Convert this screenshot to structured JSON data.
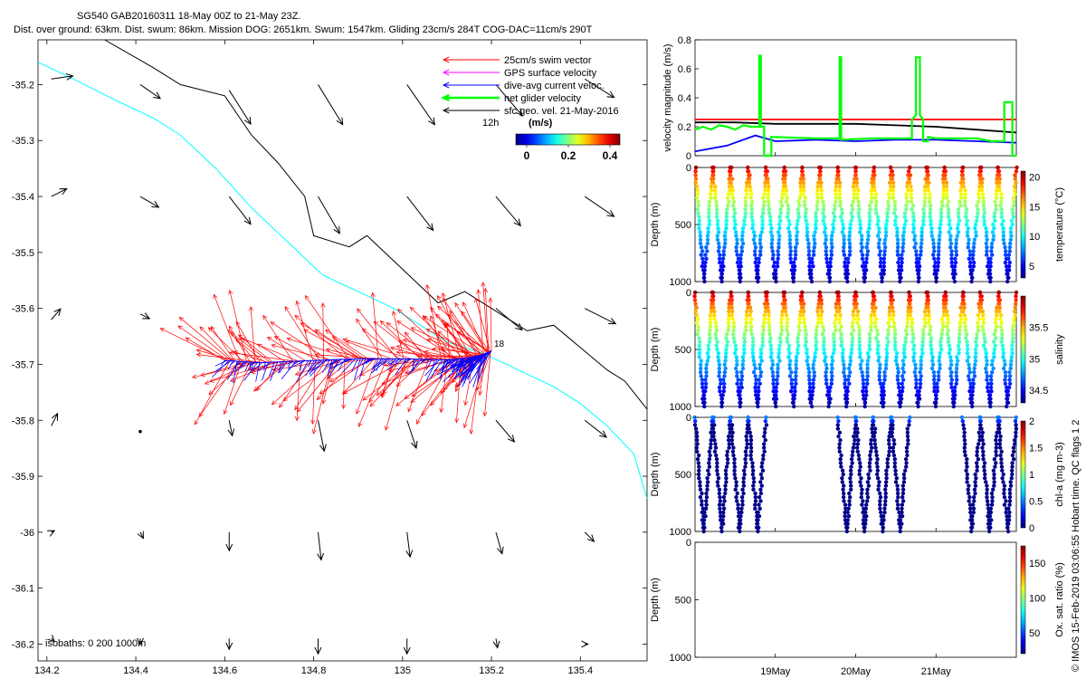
{
  "title": {
    "line1": "SG540 GAB20160311 18-May 00Z to 21-May 23Z.",
    "line2": "Dist. over ground: 63km. Dist. swum: 86km. Mission DOG: 2651km. Swum: 1547km. Gliding 23cm/s 284T COG-DAC=11cm/s 290T"
  },
  "side_caption": "© IMOS 15-Feb-2019 03:06:55 Hobart time. QC flags 1  2",
  "colors": {
    "swim": "#ff0000",
    "gps": "#ff00ff",
    "dac": "#0000ff",
    "net": "#00ff00",
    "sfc": "#000000",
    "isobath_0": "#000000",
    "isobath_200": "#00ffff",
    "isobath_1000": "#000000"
  },
  "chart_data": [
    {
      "type": "map",
      "id": "track_map",
      "xlim": [
        134.18,
        135.55
      ],
      "ylim": [
        -36.23,
        -35.12
      ],
      "x_ticks": [
        "134.2",
        "134.4",
        "134.6",
        "134.8",
        "135",
        "135.2",
        "135.4"
      ],
      "y_ticks": [
        "-35.2",
        "-35.3",
        "-35.4",
        "-35.5",
        "-35.6",
        "-35.7",
        "-35.8",
        "-35.9",
        "-36",
        "-36.1",
        "-36.2"
      ],
      "legend": {
        "items": [
          {
            "label": "25cm/s swim vector",
            "color": "#ff0000"
          },
          {
            "label": "GPS surface velocity",
            "color": "#ff00ff"
          },
          {
            "label": "dive-avg current veloc.",
            "color": "#0000ff"
          },
          {
            "label": "net glider velocity",
            "color": "#00ff00"
          },
          {
            "label": "sfc geo. vel. 21-May-2016",
            "color": "#000000"
          }
        ],
        "scale_label": "12h"
      },
      "colorbar": {
        "label": "(m/s)",
        "ticks": [
          "0",
          "0.2",
          "0.4"
        ],
        "range": [
          0,
          0.5
        ]
      },
      "isobaths_label": "isobaths: 0   200  1000m",
      "track_label": "18",
      "track": {
        "lon": [
          134.6,
          134.68,
          134.8,
          134.9,
          135.0,
          135.1,
          135.15,
          135.18,
          135.2
        ],
        "lat": [
          -35.693,
          -35.697,
          -35.693,
          -35.69,
          -35.69,
          -35.692,
          -35.688,
          -35.683,
          -35.676
        ]
      },
      "isobath_200": {
        "lon": [
          134.18,
          134.26,
          134.36,
          134.44,
          134.5,
          134.58,
          134.66,
          134.74,
          134.82,
          134.9,
          134.98,
          135.04,
          135.1,
          135.18,
          135.26,
          135.34,
          135.4,
          135.46,
          135.52,
          135.55
        ],
        "lat": [
          -35.16,
          -35.19,
          -35.23,
          -35.26,
          -35.29,
          -35.35,
          -35.42,
          -35.48,
          -35.54,
          -35.57,
          -35.6,
          -35.63,
          -35.66,
          -35.68,
          -35.71,
          -35.74,
          -35.77,
          -35.81,
          -35.86,
          -35.94
        ]
      },
      "isobath_1000": {
        "lon": [
          134.33,
          134.44,
          134.5,
          134.6,
          134.66,
          134.72,
          134.78,
          134.8,
          134.88,
          134.92,
          135.0,
          135.08,
          135.14,
          135.22,
          135.28,
          135.34,
          135.4,
          135.46,
          135.5,
          135.55
        ],
        "lat": [
          -35.12,
          -35.17,
          -35.2,
          -35.22,
          -35.29,
          -35.34,
          -35.4,
          -35.47,
          -35.49,
          -35.47,
          -35.53,
          -35.59,
          -35.57,
          -35.61,
          -35.64,
          -35.63,
          -35.67,
          -35.71,
          -35.73,
          -35.78
        ]
      },
      "current_vectors": [
        {
          "lon": 134.21,
          "lat": -35.19,
          "u": 0.14,
          "v": 0.02
        },
        {
          "lon": 134.41,
          "lat": -35.2,
          "u": 0.13,
          "v": -0.09
        },
        {
          "lon": 134.61,
          "lat": -35.21,
          "u": 0.14,
          "v": -0.22
        },
        {
          "lon": 134.81,
          "lat": -35.2,
          "u": 0.16,
          "v": -0.26
        },
        {
          "lon": 135.01,
          "lat": -35.2,
          "u": 0.18,
          "v": -0.26
        },
        {
          "lon": 135.21,
          "lat": -35.2,
          "u": 0.17,
          "v": -0.2
        },
        {
          "lon": 135.41,
          "lat": -35.19,
          "u": 0.19,
          "v": -0.12
        },
        {
          "lon": 134.21,
          "lat": -35.4,
          "u": 0.1,
          "v": 0.05
        },
        {
          "lon": 134.41,
          "lat": -35.4,
          "u": 0.12,
          "v": -0.07
        },
        {
          "lon": 134.61,
          "lat": -35.4,
          "u": 0.14,
          "v": -0.18
        },
        {
          "lon": 134.81,
          "lat": -35.4,
          "u": 0.14,
          "v": -0.24
        },
        {
          "lon": 135.01,
          "lat": -35.4,
          "u": 0.17,
          "v": -0.22
        },
        {
          "lon": 135.21,
          "lat": -35.4,
          "u": 0.16,
          "v": -0.19
        },
        {
          "lon": 135.41,
          "lat": -35.4,
          "u": 0.19,
          "v": -0.13
        },
        {
          "lon": 134.21,
          "lat": -35.62,
          "u": 0.06,
          "v": 0.07
        },
        {
          "lon": 134.41,
          "lat": -35.61,
          "u": 0.06,
          "v": -0.03
        },
        {
          "lon": 135.21,
          "lat": -35.6,
          "u": 0.17,
          "v": -0.14
        },
        {
          "lon": 135.41,
          "lat": -35.6,
          "u": 0.2,
          "v": -0.1
        },
        {
          "lon": 134.21,
          "lat": -35.81,
          "u": 0.04,
          "v": 0.08
        },
        {
          "lon": 134.41,
          "lat": -35.82,
          "u": 0.0,
          "v": 0.0
        },
        {
          "lon": 134.61,
          "lat": -35.8,
          "u": 0.02,
          "v": -0.1
        },
        {
          "lon": 134.81,
          "lat": -35.8,
          "u": 0.04,
          "v": -0.2
        },
        {
          "lon": 135.01,
          "lat": -35.8,
          "u": 0.06,
          "v": -0.18
        },
        {
          "lon": 135.21,
          "lat": -35.8,
          "u": 0.12,
          "v": -0.14
        },
        {
          "lon": 135.41,
          "lat": -35.8,
          "u": 0.14,
          "v": -0.11
        },
        {
          "lon": 134.21,
          "lat": -36.0,
          "u": 0.02,
          "v": 0.01
        },
        {
          "lon": 134.41,
          "lat": -36.0,
          "u": 0.02,
          "v": -0.04
        },
        {
          "lon": 134.61,
          "lat": -36.0,
          "u": 0.0,
          "v": -0.12
        },
        {
          "lon": 134.81,
          "lat": -36.0,
          "u": 0.02,
          "v": -0.18
        },
        {
          "lon": 135.01,
          "lat": -36.0,
          "u": 0.02,
          "v": -0.16
        },
        {
          "lon": 135.21,
          "lat": -36.0,
          "u": 0.04,
          "v": -0.14
        },
        {
          "lon": 135.41,
          "lat": -36.0,
          "u": 0.06,
          "v": -0.06
        },
        {
          "lon": 134.21,
          "lat": -36.19,
          "u": 0.02,
          "v": -0.02
        },
        {
          "lon": 134.41,
          "lat": -36.19,
          "u": 0.0,
          "v": -0.04
        },
        {
          "lon": 134.61,
          "lat": -36.19,
          "u": 0.0,
          "v": -0.07
        },
        {
          "lon": 134.81,
          "lat": -36.19,
          "u": 0.0,
          "v": -0.1
        },
        {
          "lon": 135.01,
          "lat": -36.19,
          "u": 0.0,
          "v": -0.1
        },
        {
          "lon": 135.21,
          "lat": -36.19,
          "u": 0.01,
          "v": -0.06
        },
        {
          "lon": 135.41,
          "lat": -36.2,
          "u": 0.02,
          "v": 0.0
        }
      ]
    },
    {
      "type": "line",
      "id": "velocity",
      "ylabel": "velocity magnitude (m/s)",
      "ylim": [
        0,
        0.8
      ],
      "yticks": [
        "0",
        "0.2",
        "0.4",
        "0.6",
        "0.8"
      ],
      "xlim": [
        0,
        4
      ],
      "series": [
        {
          "color": "#ff0000",
          "x": [
            0,
            4
          ],
          "y": [
            0.25,
            0.25
          ]
        },
        {
          "color": "#000000",
          "x": [
            0,
            0.5,
            1,
            1.5,
            2,
            2.5,
            3,
            3.5,
            4
          ],
          "y": [
            0.23,
            0.23,
            0.22,
            0.22,
            0.22,
            0.21,
            0.2,
            0.18,
            0.16
          ]
        },
        {
          "color": "#0000ff",
          "x": [
            0,
            0.4,
            0.75,
            1.0,
            1.5,
            2.0,
            2.5,
            3.0,
            3.5,
            4
          ],
          "y": [
            0.03,
            0.07,
            0.14,
            0.1,
            0.11,
            0.1,
            0.11,
            0.11,
            0.1,
            0.09
          ]
        },
        {
          "color": "#00ff00",
          "x": [
            0,
            0.1,
            0.2,
            0.3,
            0.4,
            0.5,
            0.6,
            0.7,
            0.8,
            0.8,
            0.82,
            0.82,
            0.86,
            0.86,
            0.95,
            0.95,
            1.5,
            1.8,
            1.8,
            1.82,
            1.82,
            2.2,
            2.7,
            2.7,
            2.75,
            2.75,
            2.8,
            2.8,
            2.84,
            2.84,
            2.9,
            2.9,
            3.0,
            3.5,
            3.7,
            3.85,
            3.85,
            3.95,
            3.95,
            4.0
          ],
          "y": [
            0.18,
            0.2,
            0.18,
            0.21,
            0.2,
            0.18,
            0.21,
            0.2,
            0.2,
            0.69,
            0.69,
            0.2,
            0.2,
            0.0,
            0.0,
            0.13,
            0.12,
            0.12,
            0.68,
            0.68,
            0.11,
            0.12,
            0.12,
            0.25,
            0.28,
            0.68,
            0.68,
            0.28,
            0.25,
            0.1,
            0.1,
            0.13,
            0.12,
            0.12,
            0.1,
            0.1,
            0.37,
            0.37,
            0.0,
            0.0
          ]
        }
      ]
    },
    {
      "type": "scatter",
      "id": "temperature",
      "ylabel": "Depth (m)",
      "ylim": [
        1000,
        0
      ],
      "yticks": [
        "0",
        "500",
        "1000"
      ],
      "colorbar_label": "temperature (°C)",
      "colorbar_ticks": [
        "5",
        "10",
        "15",
        "20"
      ],
      "crange": [
        3,
        21
      ],
      "profiles": {
        "count": 18,
        "max_depth": 1000,
        "surface_value": 20,
        "deep_value": 3.5
      },
      "dive_ranges": [
        [
          0,
          4
        ]
      ]
    },
    {
      "type": "scatter",
      "id": "salinity",
      "ylabel": "Depth (m)",
      "ylim": [
        1000,
        0
      ],
      "yticks": [
        "0",
        "500",
        "1000"
      ],
      "colorbar_label": "salinity",
      "colorbar_ticks": [
        "34.5",
        "35",
        "35.5"
      ],
      "crange": [
        34.3,
        36.0
      ],
      "profiles": {
        "count": 18,
        "max_depth": 1000,
        "surface_value": 35.95,
        "deep_value": 34.35
      },
      "dive_ranges": [
        [
          0,
          4
        ]
      ]
    },
    {
      "type": "scatter",
      "id": "chla",
      "ylabel": "Depth (m)",
      "ylim": [
        1000,
        0
      ],
      "yticks": [
        "0",
        "500",
        "1000"
      ],
      "colorbar_label": "chl-a (mg m-3)",
      "colorbar_ticks": [
        "0",
        "0.5",
        "1",
        "1.5",
        "2"
      ],
      "crange": [
        0,
        2
      ],
      "profiles": {
        "count": 18,
        "max_depth": 1000,
        "surface_value": 0.5,
        "deep_value": 0.0
      },
      "dive_ranges": [
        [
          0,
          0.85
        ],
        [
          1.7,
          2.6
        ],
        [
          3.2,
          3.95
        ]
      ]
    },
    {
      "type": "scatter",
      "id": "oxygen",
      "ylabel": "Depth (m)",
      "ylim": [
        1000,
        0
      ],
      "yticks": [
        "0",
        "500",
        "1000"
      ],
      "colorbar_label": "Ox. sat. ratio (%)",
      "colorbar_ticks": [
        "50",
        "100",
        "150"
      ],
      "crange": [
        20,
        175
      ],
      "dive_ranges": []
    }
  ],
  "time_axis": {
    "xlim": [
      0,
      4
    ],
    "ticks": [
      {
        "x": 1,
        "label": "19May"
      },
      {
        "x": 2,
        "label": "20May"
      },
      {
        "x": 3,
        "label": "21May"
      }
    ]
  }
}
